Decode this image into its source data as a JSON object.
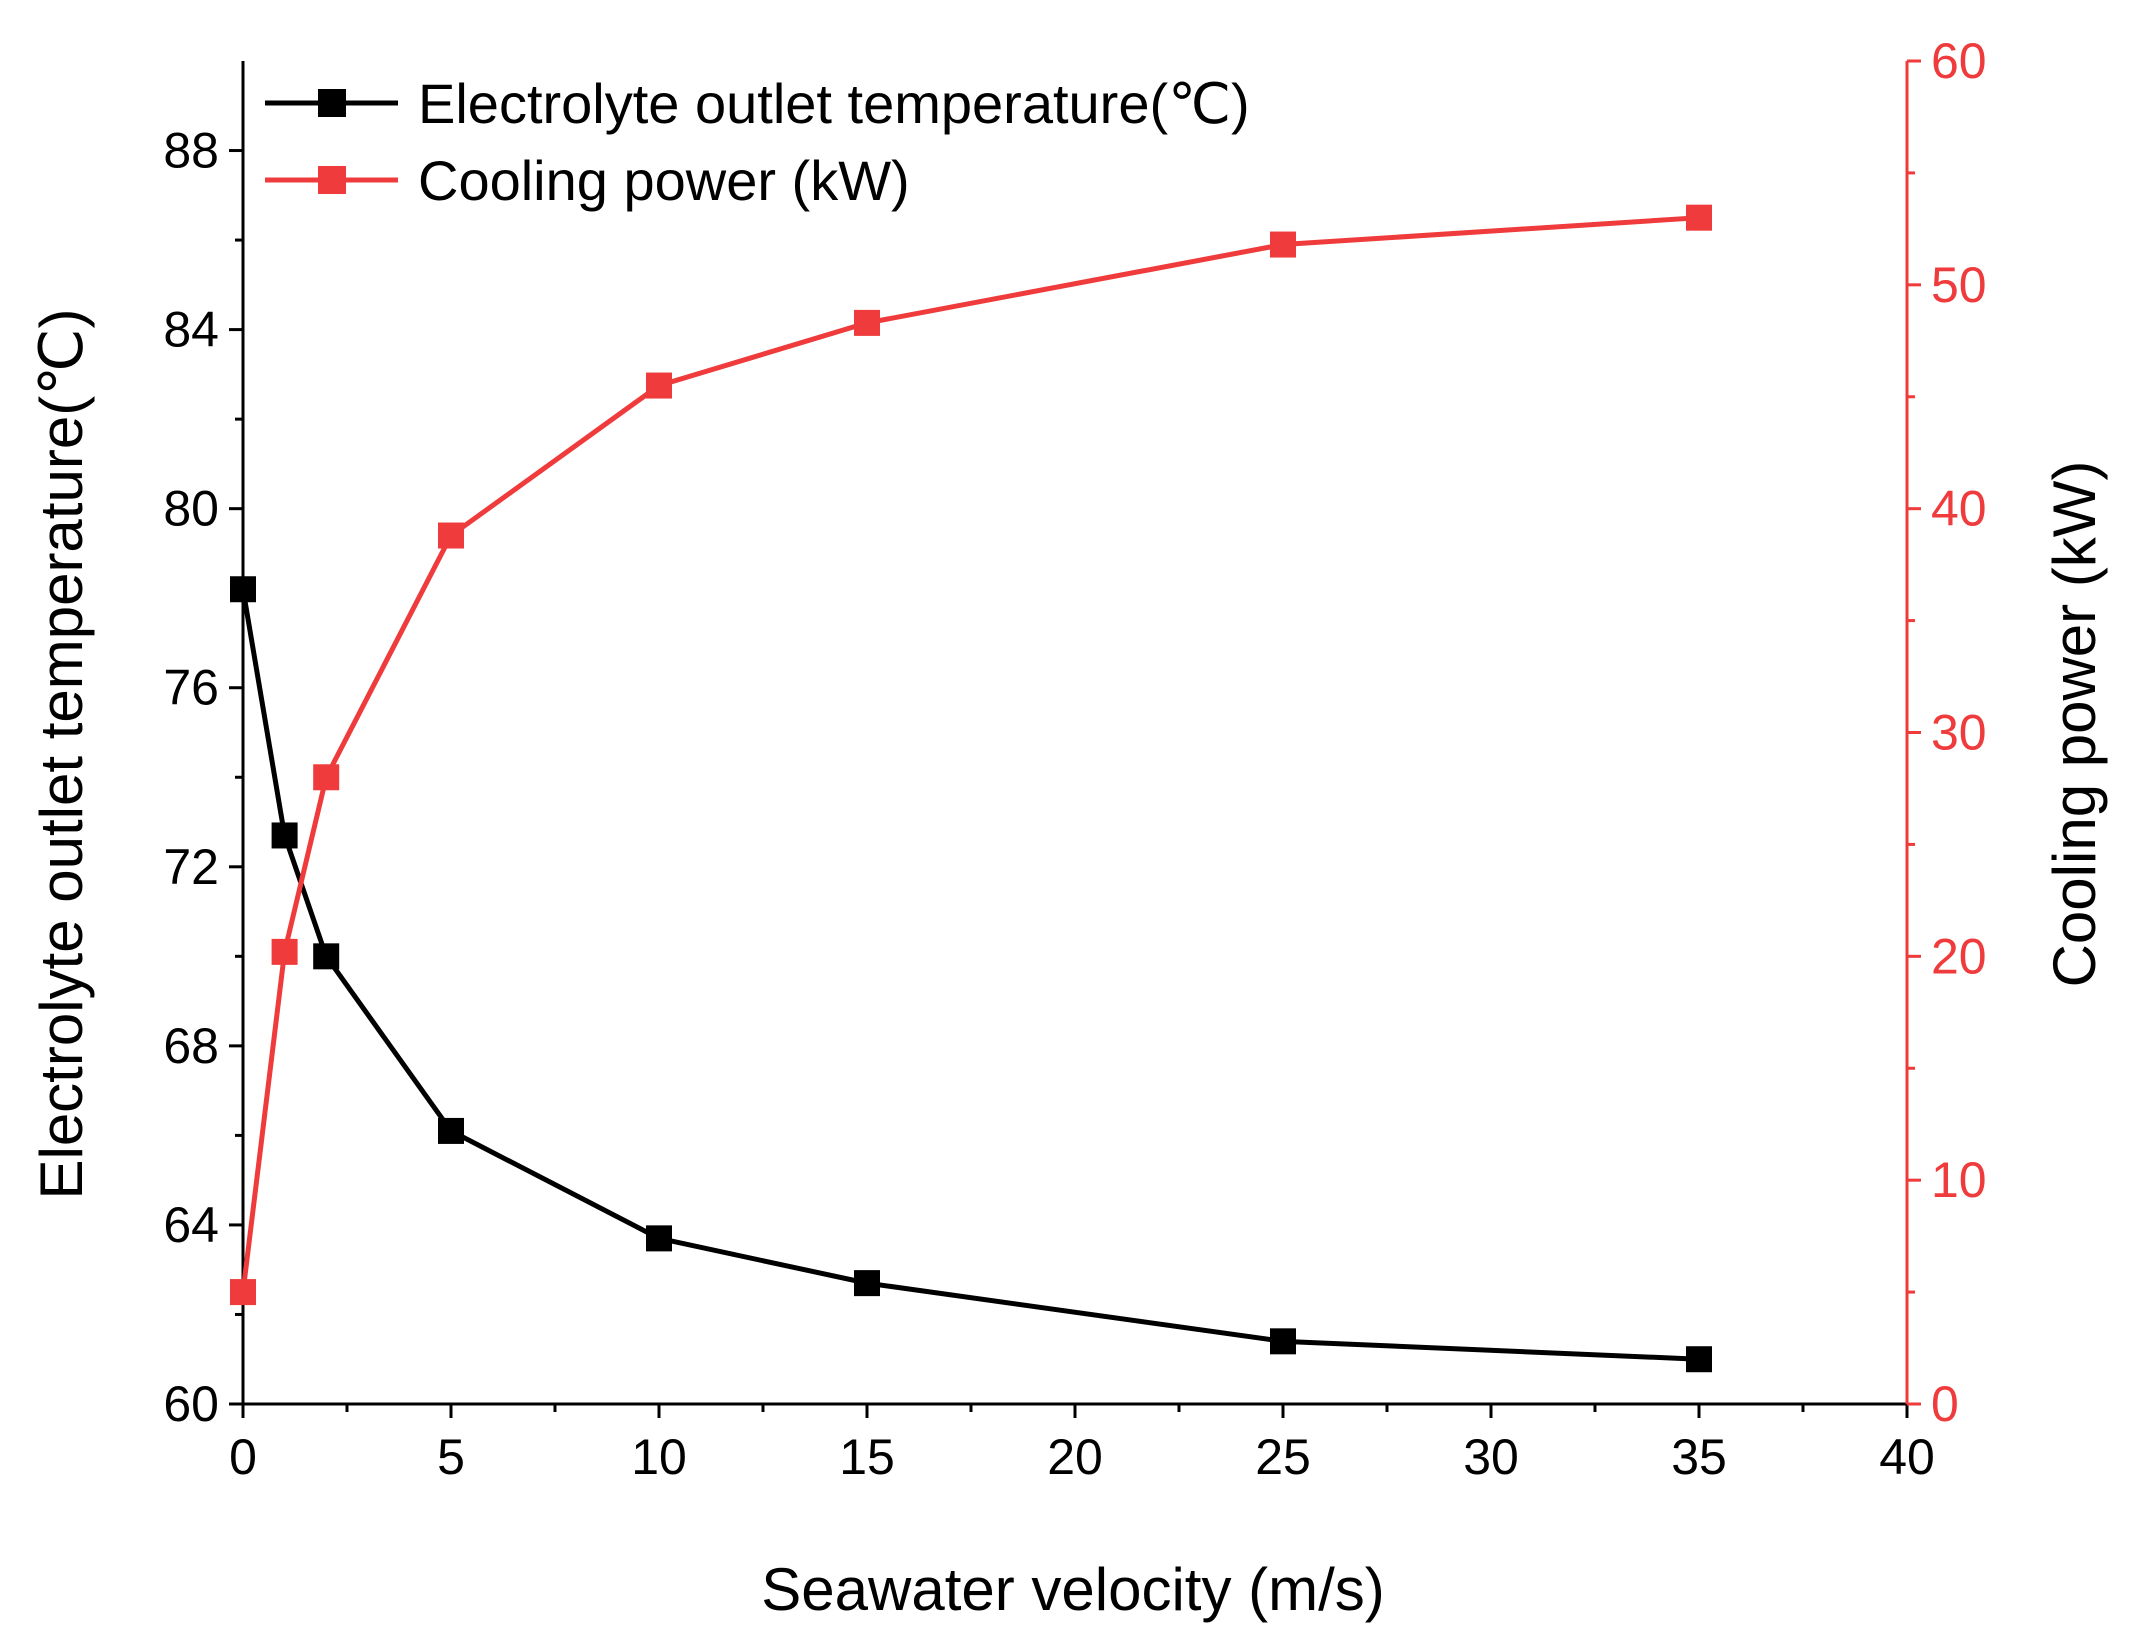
{
  "chart_data": {
    "type": "line",
    "title": "",
    "xlabel": "Seawater velocity (m/s)",
    "ylabel": "Electrolyte outlet temperature(℃)",
    "y2label": "Cooling power (kW)",
    "xlim": [
      0,
      40
    ],
    "ylim": [
      60,
      90
    ],
    "y2lim": [
      0,
      60
    ],
    "x_ticks": [
      0,
      5,
      10,
      15,
      20,
      25,
      30,
      35,
      40
    ],
    "y_ticks": [
      60,
      64,
      68,
      72,
      76,
      80,
      84,
      88
    ],
    "y2_ticks": [
      0,
      10,
      20,
      30,
      40,
      50,
      60
    ],
    "legend_position": "top-left",
    "grid": false,
    "x": [
      0,
      1,
      2,
      5,
      10,
      15,
      25,
      35
    ],
    "series": [
      {
        "name": "Electrolyte outlet temperature(℃)",
        "axis": "left",
        "color": "#000000",
        "marker": "square",
        "values": [
          78.2,
          72.7,
          70.0,
          66.1,
          63.7,
          62.7,
          61.4,
          61.0
        ]
      },
      {
        "name": "Cooling power (kW)",
        "axis": "right",
        "color": "#ef3b3b",
        "marker": "square",
        "values": [
          5.0,
          20.2,
          28.0,
          38.8,
          45.5,
          48.3,
          51.8,
          53.0
        ]
      }
    ]
  }
}
